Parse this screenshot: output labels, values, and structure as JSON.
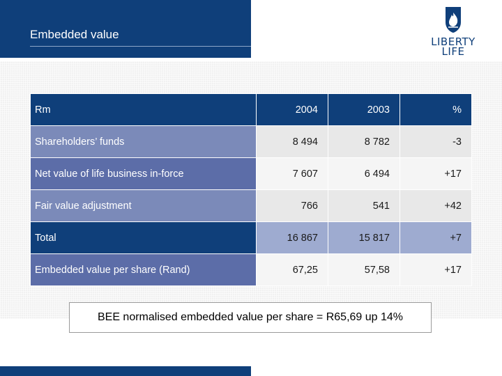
{
  "header": {
    "title": "Embedded value",
    "logo_line1": "LIBERTY",
    "logo_line2": "LIFE",
    "brand_color": "#0f3f7a"
  },
  "table": {
    "columns": [
      "Rm",
      "2004",
      "2003",
      "%"
    ],
    "rows": [
      {
        "label": "Shareholders’ funds",
        "v2004": "8 494",
        "v2003": "8 782",
        "pct": "-3"
      },
      {
        "label": "Net value of life business in-force",
        "v2004": "7 607",
        "v2003": "6 494",
        "pct": "+17"
      },
      {
        "label": "Fair value adjustment",
        "v2004": "766",
        "v2003": "541",
        "pct": "+42"
      },
      {
        "label": "Total",
        "v2004": "16 867",
        "v2003": "15 817",
        "pct": "+7"
      },
      {
        "label": "Embedded value per share (Rand)",
        "v2004": "67,25",
        "v2003": "57,58",
        "pct": "+17"
      }
    ]
  },
  "footnote": "BEE normalised embedded value per share = R65,69 up 14%"
}
